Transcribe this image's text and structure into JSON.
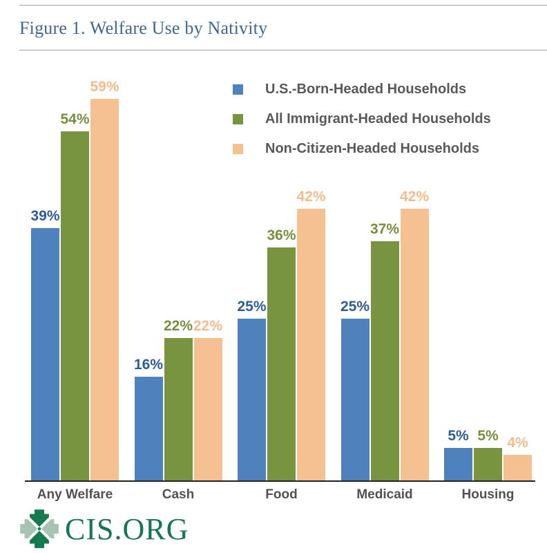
{
  "header": {
    "title": "Figure 1. Welfare Use by Nativity"
  },
  "chart_data": {
    "type": "bar",
    "title": "Figure 1. Welfare Use by Nativity",
    "categories": [
      "Any Welfare",
      "Cash",
      "Food",
      "Medicaid",
      "Housing"
    ],
    "series": [
      {
        "name": "U.S.-Born-Headed Households",
        "color": "#4f81bd",
        "label_color": "#2f5b98",
        "values": [
          39,
          16,
          25,
          25,
          5
        ]
      },
      {
        "name": "All Immigrant-Headed Households",
        "color": "#789440",
        "label_color": "#75903c",
        "values": [
          54,
          22,
          36,
          37,
          5
        ]
      },
      {
        "name": "Non-Citizen-Headed Households",
        "color": "#f5c191",
        "label_color": "#f3bd8b",
        "values": [
          59,
          22,
          42,
          42,
          4
        ]
      }
    ],
    "value_suffix": "%",
    "xlabel": "",
    "ylabel": "",
    "ylim": [
      0,
      63
    ],
    "grid": false,
    "legend_position": "top-right",
    "axis_color": "#222222"
  },
  "footer": {
    "logo_text": "CIS.ORG",
    "logo_dark_green": "#157a50",
    "logo_light_green": "#a9c3b2"
  }
}
